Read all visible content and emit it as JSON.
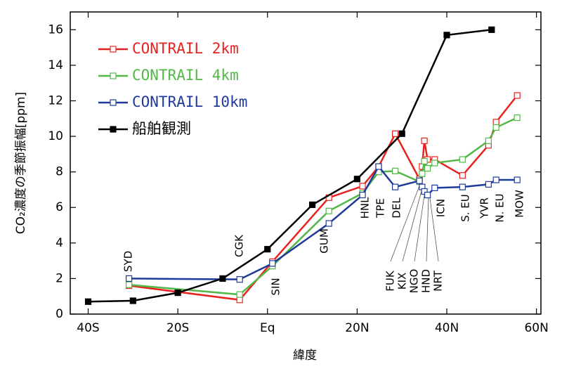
{
  "chart_data": {
    "type": "line",
    "x_label": "緯度",
    "y_label": "CO₂濃度の季節振幅[ppm]",
    "xlim": [
      -44,
      61
    ],
    "ylim": [
      0,
      17
    ],
    "xticks": [
      {
        "value": -40,
        "label": "40S"
      },
      {
        "value": -20,
        "label": "20S"
      },
      {
        "value": 0,
        "label": "Eq"
      },
      {
        "value": 20,
        "label": "20N"
      },
      {
        "value": 40,
        "label": "40N"
      },
      {
        "value": 60,
        "label": "60N"
      }
    ],
    "yticks": [
      0,
      2,
      4,
      6,
      8,
      10,
      12,
      14,
      16
    ],
    "series": [
      {
        "name": "CONTRAIL 2km",
        "color": "#e8231f",
        "marker": "open-square",
        "x": [
          -30.9,
          -6.2,
          1.1,
          13.7,
          21.2,
          24.8,
          28.5,
          33.9,
          34.5,
          35,
          35.7,
          37.3,
          43.5,
          49.3,
          51,
          55.7
        ],
        "values": [
          1.6,
          0.8,
          2.95,
          6.55,
          7.2,
          8.3,
          10.15,
          7.6,
          8.3,
          9.75,
          8.7,
          8.7,
          7.8,
          9.5,
          10.8,
          12.3
        ]
      },
      {
        "name": "CONTRAIL 4km",
        "color": "#52b848",
        "marker": "open-square",
        "x": [
          -30.9,
          -6.2,
          1.1,
          13.7,
          21.2,
          24.8,
          28.5,
          33.9,
          34.5,
          35,
          35.7,
          37.3,
          43.5,
          49.3,
          51,
          55.7
        ],
        "values": [
          1.65,
          1.1,
          2.7,
          5.8,
          6.8,
          8.0,
          8.05,
          7.45,
          7.9,
          8.6,
          8.2,
          8.5,
          8.7,
          9.75,
          10.5,
          11.05
        ]
      },
      {
        "name": "CONTRAIL 10km",
        "color": "#1f3a9a",
        "marker": "open-square",
        "x": [
          -30.9,
          -6.2,
          1.1,
          13.7,
          21.2,
          24.8,
          28.5,
          33.9,
          34.5,
          35,
          35.7,
          37.3,
          43.5,
          49.3,
          51,
          55.7
        ],
        "values": [
          2.0,
          1.95,
          2.85,
          5.1,
          6.7,
          8.3,
          7.15,
          7.5,
          7.15,
          6.9,
          6.7,
          7.1,
          7.15,
          7.3,
          7.55,
          7.55
        ]
      },
      {
        "name": "船舶観測",
        "color": "#000000",
        "marker": "filled-square",
        "x": [
          -40,
          -30,
          -20,
          -10,
          0,
          10,
          20,
          30,
          40,
          50
        ],
        "values": [
          0.7,
          0.75,
          1.2,
          2.0,
          3.65,
          6.15,
          7.6,
          10.15,
          15.7,
          16.0
        ]
      }
    ],
    "annotations": [
      "SYD",
      "CGK",
      "SIN",
      "GUM",
      "HNL",
      "TPE",
      "DEL",
      "FUK",
      "KIX",
      "NGO",
      "HND",
      "NRT",
      "ICN",
      "S. EU",
      "YVR",
      "N. EU",
      "MOW"
    ]
  }
}
